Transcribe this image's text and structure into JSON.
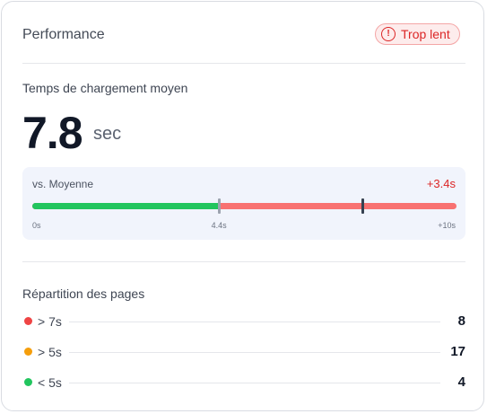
{
  "header": {
    "title": "Performance",
    "status_badge": {
      "icon": "alert-circle-icon",
      "label": "Trop lent",
      "color": "#dc2626"
    }
  },
  "load_time": {
    "label": "Temps de chargement moyen",
    "value": "7.8",
    "unit": "sec"
  },
  "comparison": {
    "label": "vs. Moyenne",
    "diff": "+3.4s",
    "scale_min": 0,
    "scale_max": 10,
    "average": 4.4,
    "current": 7.8,
    "ticks": [
      "0s",
      "4.4s",
      "+10s"
    ],
    "colors": {
      "below": "#22c55e",
      "above": "#f87171"
    }
  },
  "distribution": {
    "label": "Répartition des pages",
    "rows": [
      {
        "label": "> 7s",
        "count": "8",
        "color": "#ef4444"
      },
      {
        "label": "> 5s",
        "count": "17",
        "color": "#f59e0b"
      },
      {
        "label": "< 5s",
        "count": "4",
        "color": "#22c55e"
      }
    ]
  }
}
